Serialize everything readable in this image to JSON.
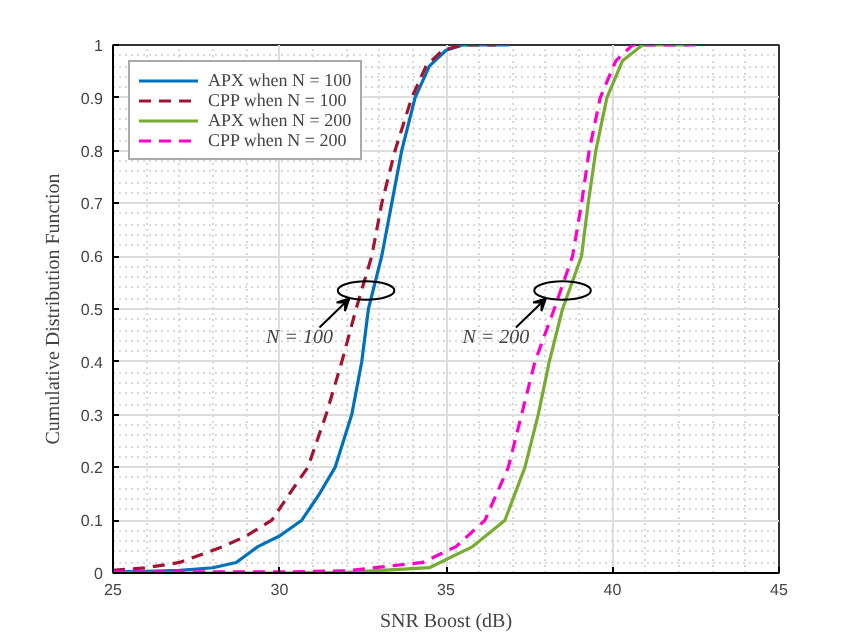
{
  "chart_data": {
    "type": "line",
    "xlabel": "SNR Boost (dB)",
    "ylabel": "Cumulative Distribution Function",
    "xlim": [
      25,
      45
    ],
    "ylim": [
      0,
      1
    ],
    "xticks": [
      25,
      30,
      35,
      40,
      45
    ],
    "yticks": [
      0,
      0.1,
      0.2,
      0.3,
      0.4,
      0.5,
      0.6,
      0.7,
      0.8,
      0.9,
      1
    ],
    "grid": true,
    "legend": "top left",
    "series": [
      {
        "name": "APX when N = 100",
        "color": "#0072bd",
        "line_style": "solid",
        "x": [
          25,
          26,
          27,
          28,
          28.7,
          29.35,
          30,
          30.67,
          31.2,
          31.67,
          32.17,
          32.47,
          32.67,
          33.07,
          33.37,
          33.67,
          34.07,
          34.5,
          35,
          35.5,
          36.9
        ],
        "values": [
          0.002,
          0.003,
          0.005,
          0.01,
          0.02,
          0.05,
          0.07,
          0.1,
          0.15,
          0.2,
          0.3,
          0.4,
          0.5,
          0.6,
          0.7,
          0.8,
          0.9,
          0.96,
          0.99,
          1,
          1
        ]
      },
      {
        "name": "CPP when N = 100",
        "color": "#a2142f",
        "line_style": "dashed",
        "x": [
          25,
          26,
          27,
          28.3,
          29,
          29.77,
          30.3,
          30.85,
          31.4,
          31.87,
          32.3,
          32.77,
          33.07,
          33.47,
          33.97,
          34.4,
          34.9,
          35.5,
          36.5
        ],
        "values": [
          0.005,
          0.01,
          0.02,
          0.05,
          0.07,
          0.1,
          0.15,
          0.2,
          0.3,
          0.4,
          0.5,
          0.6,
          0.7,
          0.8,
          0.9,
          0.96,
          0.99,
          1,
          1
        ]
      },
      {
        "name": "APX when N = 200",
        "color": "#77ac30",
        "line_style": "solid",
        "x": [
          25,
          30,
          32,
          34.5,
          35.8,
          36.77,
          37.37,
          37.77,
          38.1,
          38.5,
          39.07,
          39.27,
          39.5,
          39.83,
          40.3,
          40.9,
          42.3
        ],
        "values": [
          0,
          0,
          0.001,
          0.01,
          0.05,
          0.1,
          0.2,
          0.3,
          0.4,
          0.5,
          0.6,
          0.7,
          0.8,
          0.9,
          0.97,
          1,
          1
        ]
      },
      {
        "name": "CPP when N = 200",
        "color": "#ff00cc",
        "line_style": "dashed",
        "x": [
          25,
          30,
          32,
          34.3,
          35.3,
          36.17,
          36.87,
          37.27,
          37.67,
          38.25,
          38.8,
          39.07,
          39.3,
          39.63,
          40.1,
          40.6,
          42.5
        ],
        "values": [
          0.002,
          0.002,
          0.004,
          0.02,
          0.05,
          0.1,
          0.2,
          0.3,
          0.4,
          0.5,
          0.6,
          0.7,
          0.8,
          0.9,
          0.97,
          1,
          1
        ]
      }
    ],
    "annotations": [
      {
        "text": "N = 100",
        "x": 32.6,
        "y": 0.535
      },
      {
        "text": "N = 200",
        "x": 38.5,
        "y": 0.535
      }
    ]
  }
}
